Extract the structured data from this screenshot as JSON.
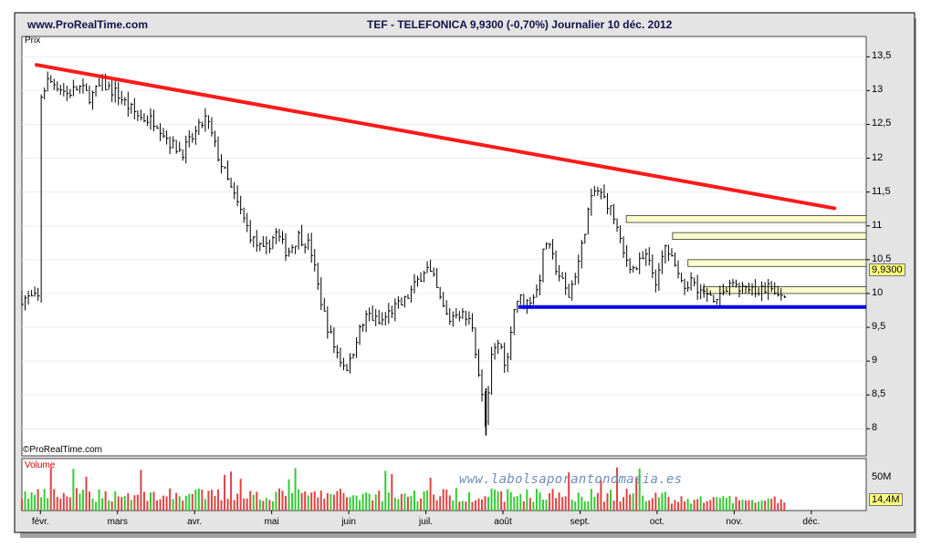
{
  "header": {
    "site": "www.ProRealTime.com",
    "title": "TEF - TELEFONICA    9,9300 (-0,70%)    Journalier  10 déc. 2012"
  },
  "panels": {
    "price_label": "Prix",
    "volume_label": "Volume",
    "copyright": "©ProRealTime.com",
    "watermark": "www.labolsaporantonomasia.es",
    "last_price_tag": "9,9300",
    "last_volume_tag": "14,4M",
    "volume_axis_label": "50M"
  },
  "colors": {
    "trendline": "#ff1a1a",
    "support": "#0000ee",
    "price_bars": "#000000",
    "volume_up": "#33cc33",
    "volume_down": "#dd4444",
    "fib_band": "#ffffcc",
    "frame_bg": "#e4e4e4"
  },
  "chart_data": {
    "type": "bar",
    "title": "TEF - TELEFONICA    9,9300 (-0,70%)    Journalier  10 déc. 2012",
    "xlabel": "",
    "ylabel": "Prix",
    "ylim": [
      7.6,
      13.8
    ],
    "y_ticks": [
      "13,5",
      "13",
      "12,5",
      "12",
      "11,5",
      "11",
      "10,5",
      "10",
      "9,5",
      "9",
      "8,5",
      "8"
    ],
    "x_ticks": [
      "févr.",
      "mars",
      "avr.",
      "mai",
      "juin",
      "juil.",
      "août",
      "sept.",
      "oct.",
      "nov.",
      "déc."
    ],
    "close_series": [
      [
        0.0,
        12.9
      ],
      [
        0.1,
        13.15
      ],
      [
        0.2,
        13.1
      ],
      [
        0.35,
        12.95
      ],
      [
        0.5,
        13.05
      ],
      [
        0.65,
        12.9
      ],
      [
        0.8,
        13.1
      ],
      [
        1.0,
        12.95
      ],
      [
        1.15,
        12.75
      ],
      [
        1.3,
        12.6
      ],
      [
        1.5,
        12.55
      ],
      [
        1.7,
        12.2
      ],
      [
        1.85,
        12.1
      ],
      [
        2.0,
        12.35
      ],
      [
        2.15,
        12.6
      ],
      [
        2.3,
        12.05
      ],
      [
        2.45,
        11.6
      ],
      [
        2.6,
        11.2
      ],
      [
        2.75,
        10.8
      ],
      [
        2.9,
        10.6
      ],
      [
        3.05,
        10.9
      ],
      [
        3.2,
        10.6
      ],
      [
        3.35,
        10.85
      ],
      [
        3.5,
        10.7
      ],
      [
        3.6,
        10.1
      ],
      [
        3.7,
        9.6
      ],
      [
        3.8,
        9.25
      ],
      [
        3.9,
        9.0
      ],
      [
        4.0,
        8.9
      ],
      [
        4.1,
        9.35
      ],
      [
        4.25,
        9.7
      ],
      [
        4.4,
        9.55
      ],
      [
        4.55,
        9.75
      ],
      [
        4.7,
        9.85
      ],
      [
        4.85,
        10.1
      ],
      [
        5.0,
        10.4
      ],
      [
        5.1,
        10.2
      ],
      [
        5.2,
        9.85
      ],
      [
        5.3,
        9.6
      ],
      [
        5.4,
        9.75
      ],
      [
        5.5,
        9.65
      ],
      [
        5.6,
        9.55
      ],
      [
        5.7,
        8.7
      ],
      [
        5.78,
        8.0
      ],
      [
        5.85,
        9.05
      ],
      [
        5.95,
        9.3
      ],
      [
        6.05,
        8.9
      ],
      [
        6.12,
        9.7
      ],
      [
        6.2,
        9.95
      ],
      [
        6.3,
        9.85
      ],
      [
        6.45,
        10.05
      ],
      [
        6.55,
        10.8
      ],
      [
        6.7,
        10.35
      ],
      [
        6.85,
        9.95
      ],
      [
        7.0,
        10.55
      ],
      [
        7.1,
        11.2
      ],
      [
        7.2,
        11.55
      ],
      [
        7.35,
        11.35
      ],
      [
        7.45,
        11.1
      ],
      [
        7.55,
        10.6
      ],
      [
        7.7,
        10.35
      ],
      [
        7.85,
        10.55
      ],
      [
        8.0,
        10.15
      ],
      [
        8.1,
        10.7
      ],
      [
        8.2,
        10.5
      ],
      [
        8.3,
        10.1
      ],
      [
        8.45,
        10.2
      ],
      [
        8.6,
        10.0
      ],
      [
        8.75,
        9.95
      ],
      [
        8.9,
        10.05
      ],
      [
        9.0,
        10.15
      ],
      [
        9.15,
        10.05
      ],
      [
        9.3,
        10.0
      ],
      [
        9.45,
        10.1
      ],
      [
        9.55,
        9.95
      ],
      [
        9.65,
        9.93
      ]
    ],
    "trendline": [
      [
        -0.05,
        13.38
      ],
      [
        10.3,
        11.26
      ]
    ],
    "support_line": {
      "y": 9.8,
      "from_x": 6.2
    },
    "resistance_bands": [
      {
        "from_x": 7.6,
        "y_low": 11.05,
        "y_high": 11.15
      },
      {
        "from_x": 8.2,
        "y_low": 10.8,
        "y_high": 10.9
      },
      {
        "from_x": 8.4,
        "y_low": 10.4,
        "y_high": 10.5
      },
      {
        "from_x": 8.6,
        "y_low": 10.0,
        "y_high": 10.1
      }
    ],
    "volume_ylim": [
      0,
      60
    ],
    "volume_unit": "M"
  }
}
